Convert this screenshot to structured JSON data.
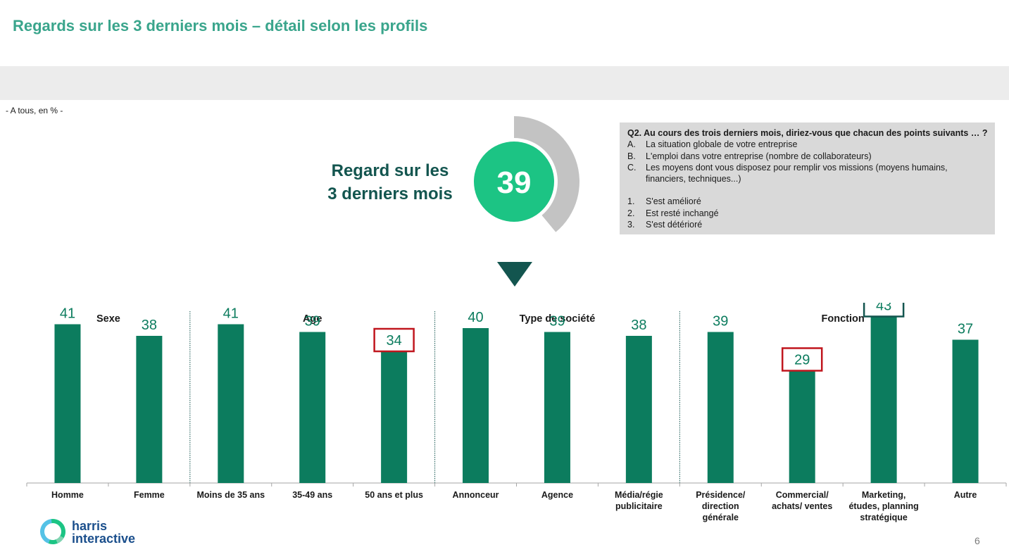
{
  "page": {
    "title": "Regards sur les 3 derniers mois – détail selon les profils",
    "base_note": "- A tous, en % -",
    "page_number": "6"
  },
  "kpi": {
    "label_line1": "Regard sur les",
    "label_line2": "3 derniers mois",
    "value": "39",
    "circle_color": "#1cc484",
    "arc_color": "#c3c3c3"
  },
  "question": {
    "title": "Q2. Au cours des trois derniers mois, diriez-vous que chacun des points suivants … ?",
    "items": [
      {
        "marker": "A.",
        "text": "La situation globale de votre entreprise"
      },
      {
        "marker": "B.",
        "text": "L'emploi dans votre entreprise (nombre de collaborateurs)"
      },
      {
        "marker": "C.",
        "text": "Les moyens dont vous disposez pour remplir vos missions (moyens humains, financiers, techniques...)"
      }
    ],
    "answers": [
      {
        "marker": "1.",
        "text": "S'est amélioré"
      },
      {
        "marker": "2.",
        "text": "Est resté inchangé"
      },
      {
        "marker": "3.",
        "text": "S'est détérioré"
      }
    ]
  },
  "logo": {
    "line1": "harris",
    "line2": "interactive"
  },
  "chart_data": {
    "type": "bar",
    "bar_color": "#0c7c5e",
    "value_color": "#0c7c5e",
    "ylim": [
      0,
      100
    ],
    "groups": [
      {
        "name": "Sexe",
        "start": 0,
        "end": 1
      },
      {
        "name": "Age",
        "start": 2,
        "end": 4
      },
      {
        "name": "Type de société",
        "start": 5,
        "end": 7
      },
      {
        "name": "Fonction",
        "start": 8,
        "end": 11
      }
    ],
    "categories": [
      [
        "Homme"
      ],
      [
        "Femme"
      ],
      [
        "Moins de 35 ans"
      ],
      [
        "35-49 ans"
      ],
      [
        "50 ans et plus"
      ],
      [
        "Annonceur"
      ],
      [
        "Agence"
      ],
      [
        "Média/régie",
        "publicitaire"
      ],
      [
        "Présidence/",
        "direction",
        "générale"
      ],
      [
        "Commercial/",
        "achats/ ventes"
      ],
      [
        "Marketing,",
        "études, planning",
        "stratégique"
      ],
      [
        "Autre"
      ]
    ],
    "values": [
      41,
      38,
      41,
      39,
      34,
      40,
      39,
      38,
      39,
      29,
      43,
      37
    ],
    "highlights": [
      {
        "index": 4,
        "type": "lower",
        "color": "#c0161e"
      },
      {
        "index": 9,
        "type": "lower",
        "color": "#c0161e"
      },
      {
        "index": 10,
        "type": "higher",
        "color": "#13554f"
      }
    ]
  }
}
